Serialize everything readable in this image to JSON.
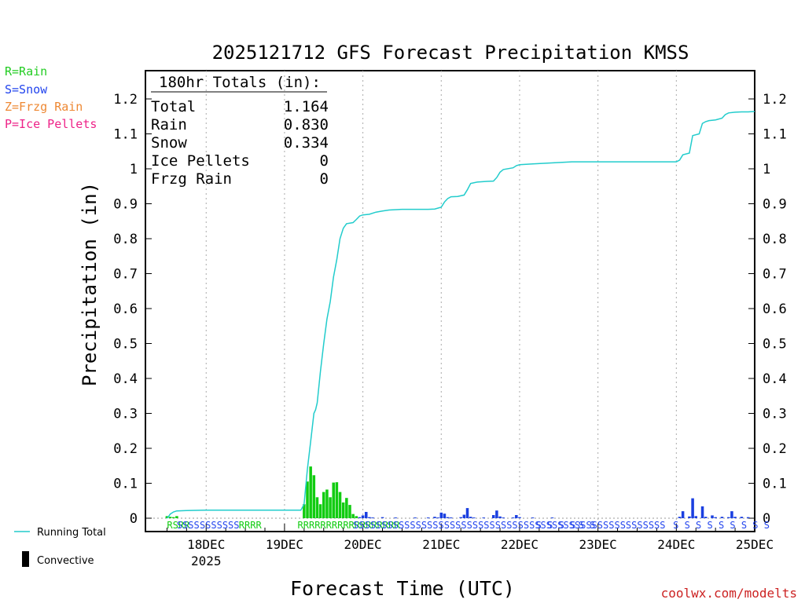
{
  "chart_data": {
    "type": "bar",
    "title": "2025121712 GFS Forecast Precipitation KMSS",
    "xlabel": "Forecast Time (UTC)",
    "ylabel": "Precipitation (in)",
    "ylim": [
      0,
      1.27
    ],
    "y_ticks": [
      0,
      0.1,
      0.2,
      0.3,
      0.4,
      0.5,
      0.6,
      0.7,
      0.8,
      0.9,
      1,
      1.1,
      1.2
    ],
    "y_tick_labels": [
      "0",
      "0.1",
      "0.2",
      "0.3",
      "0.4",
      "0.5",
      "0.6",
      "0.7",
      "0.8",
      "0.9",
      "1",
      "1.1",
      "1.2"
    ],
    "x_range_hours": [
      -6.6,
      180
    ],
    "x_ticks": [
      {
        "hour": 12,
        "label": "18DEC",
        "sublabel": "2025"
      },
      {
        "hour": 36,
        "label": "19DEC"
      },
      {
        "hour": 60,
        "label": "20DEC"
      },
      {
        "hour": 84,
        "label": "21DEC"
      },
      {
        "hour": 108,
        "label": "22DEC"
      },
      {
        "hour": 132,
        "label": "23DEC"
      },
      {
        "hour": 156,
        "label": "24DEC"
      },
      {
        "hour": 180,
        "label": "25DEC"
      }
    ],
    "legend": {
      "type_keys": [
        {
          "label": "R=Rain",
          "color": "#22cc22"
        },
        {
          "label": "S=Snow",
          "color": "#2244ee"
        },
        {
          "label": "Z=Frzg Rain",
          "color": "#ee8833"
        },
        {
          "label": "P=Ice Pellets",
          "color": "#ee2288"
        }
      ],
      "running_total_label": "Running Total",
      "convective_label": "Convective"
    },
    "totals_box": {
      "header": "180hr Totals (in):",
      "rows": [
        {
          "label": "Total",
          "value": "1.164"
        },
        {
          "label": "Rain",
          "value": "0.830"
        },
        {
          "label": "Snow",
          "value": "0.334"
        },
        {
          "label": "Ice Pellets",
          "value": "0"
        },
        {
          "label": "Frzg Rain",
          "value": "0"
        }
      ]
    },
    "running_total": {
      "color": "#22cccc",
      "points": [
        [
          0,
          0
        ],
        [
          0.5,
          0.005
        ],
        [
          1,
          0.012
        ],
        [
          2,
          0.018
        ],
        [
          3,
          0.021
        ],
        [
          6,
          0.022
        ],
        [
          12,
          0.023
        ],
        [
          24,
          0.023
        ],
        [
          36,
          0.023
        ],
        [
          41,
          0.023
        ],
        [
          42,
          0.04
        ],
        [
          43,
          0.14
        ],
        [
          44,
          0.22
        ],
        [
          45,
          0.3
        ],
        [
          45.5,
          0.31
        ],
        [
          46,
          0.33
        ],
        [
          47,
          0.42
        ],
        [
          48,
          0.5
        ],
        [
          49,
          0.57
        ],
        [
          50,
          0.62
        ],
        [
          51,
          0.69
        ],
        [
          52,
          0.74
        ],
        [
          53,
          0.8
        ],
        [
          54,
          0.83
        ],
        [
          55,
          0.843
        ],
        [
          57,
          0.846
        ],
        [
          58,
          0.855
        ],
        [
          59,
          0.865
        ],
        [
          60,
          0.868
        ],
        [
          62,
          0.87
        ],
        [
          64,
          0.876
        ],
        [
          66,
          0.879
        ],
        [
          68,
          0.882
        ],
        [
          72,
          0.884
        ],
        [
          76,
          0.884
        ],
        [
          80,
          0.884
        ],
        [
          82,
          0.885
        ],
        [
          84,
          0.89
        ],
        [
          85,
          0.905
        ],
        [
          86,
          0.915
        ],
        [
          87,
          0.92
        ],
        [
          89,
          0.921
        ],
        [
          91,
          0.925
        ],
        [
          92,
          0.94
        ],
        [
          93,
          0.958
        ],
        [
          95,
          0.962
        ],
        [
          98,
          0.964
        ],
        [
          100,
          0.965
        ],
        [
          101,
          0.975
        ],
        [
          102,
          0.99
        ],
        [
          103,
          0.998
        ],
        [
          106,
          1.003
        ],
        [
          107,
          1.009
        ],
        [
          108,
          1.012
        ],
        [
          112,
          1.014
        ],
        [
          116,
          1.016
        ],
        [
          120,
          1.018
        ],
        [
          124,
          1.02
        ],
        [
          128,
          1.02
        ],
        [
          132,
          1.02
        ],
        [
          144,
          1.02
        ],
        [
          156,
          1.02
        ],
        [
          157,
          1.025
        ],
        [
          158,
          1.04
        ],
        [
          160,
          1.045
        ],
        [
          161,
          1.095
        ],
        [
          163,
          1.1
        ],
        [
          164,
          1.13
        ],
        [
          165,
          1.135
        ],
        [
          166,
          1.138
        ],
        [
          168,
          1.14
        ],
        [
          170,
          1.145
        ],
        [
          171,
          1.155
        ],
        [
          172,
          1.16
        ],
        [
          174,
          1.162
        ],
        [
          176,
          1.163
        ],
        [
          178,
          1.163
        ],
        [
          180,
          1.164
        ]
      ]
    },
    "series": [
      {
        "name": "Rain",
        "color": "#11cc11",
        "bars": [
          [
            0,
            0.006
          ],
          [
            1,
            0.004
          ],
          [
            2,
            0.003
          ],
          [
            3,
            0.006
          ],
          [
            42,
            0.04
          ],
          [
            43,
            0.105
          ],
          [
            44,
            0.148
          ],
          [
            45,
            0.123
          ],
          [
            46,
            0.06
          ],
          [
            47,
            0.04
          ],
          [
            48,
            0.075
          ],
          [
            49,
            0.082
          ],
          [
            50,
            0.06
          ],
          [
            51,
            0.102
          ],
          [
            52,
            0.103
          ],
          [
            53,
            0.075
          ],
          [
            54,
            0.045
          ],
          [
            55,
            0.058
          ],
          [
            56,
            0.038
          ],
          [
            57,
            0.012
          ],
          [
            58,
            0.006
          ]
        ]
      },
      {
        "name": "Snow",
        "color": "#1a3fe0",
        "bars": [
          [
            59,
            0.003
          ],
          [
            60,
            0.008
          ],
          [
            61,
            0.018
          ],
          [
            62,
            0.003
          ],
          [
            63,
            0.002
          ],
          [
            66,
            0.003
          ],
          [
            70,
            0.002
          ],
          [
            76,
            0.002
          ],
          [
            80,
            0.002
          ],
          [
            82,
            0.004
          ],
          [
            83,
            0.002
          ],
          [
            84,
            0.016
          ],
          [
            85,
            0.013
          ],
          [
            86,
            0.003
          ],
          [
            87,
            0.002
          ],
          [
            90,
            0.003
          ],
          [
            91,
            0.01
          ],
          [
            92,
            0.029
          ],
          [
            93,
            0.004
          ],
          [
            94,
            0.002
          ],
          [
            97,
            0.002
          ],
          [
            100,
            0.009
          ],
          [
            101,
            0.022
          ],
          [
            102,
            0.005
          ],
          [
            103,
            0.002
          ],
          [
            106,
            0.002
          ],
          [
            107,
            0.009
          ],
          [
            108,
            0.003
          ],
          [
            112,
            0.002
          ],
          [
            118,
            0.002
          ],
          [
            157,
            0.004
          ],
          [
            158,
            0.02
          ],
          [
            160,
            0.005
          ],
          [
            161,
            0.057
          ],
          [
            162,
            0.006
          ],
          [
            164,
            0.034
          ],
          [
            165,
            0.004
          ],
          [
            167,
            0.008
          ],
          [
            168,
            0.003
          ],
          [
            170,
            0.004
          ],
          [
            172,
            0.003
          ],
          [
            173,
            0.02
          ],
          [
            174,
            0.004
          ],
          [
            176,
            0.004
          ],
          [
            178,
            0.003
          ]
        ]
      }
    ],
    "type_strip": [
      {
        "hour": 0,
        "text": "RSRR",
        "color": "#11cc11"
      },
      {
        "hour": 3,
        "text": "SSSS",
        "color": "#2244ee"
      },
      {
        "hour": 10,
        "text": "SSSSSSS",
        "color": "#2244ee"
      },
      {
        "hour": 22,
        "text": "RRRR",
        "color": "#11cc11"
      },
      {
        "hour": 40,
        "text": "RRRRRRRRRRRRRRRRRR",
        "color": "#11cc11"
      },
      {
        "hour": 57,
        "text": "SSSSSSSSSSSSSSSSSSSSSSSSSSSSSSSSSSSSSSSSSSSSSSSSSSSSSSS",
        "color": "#2244ee"
      },
      {
        "hour": 113,
        "text": "S S S S",
        "color": "#2244ee"
      },
      {
        "hour": 126,
        "text": "S S",
        "color": "#2244ee"
      },
      {
        "hour": 155,
        "text": "S S S S S S S S S",
        "color": "#2244ee"
      }
    ],
    "watermark": "coolwx.com/modelts"
  }
}
